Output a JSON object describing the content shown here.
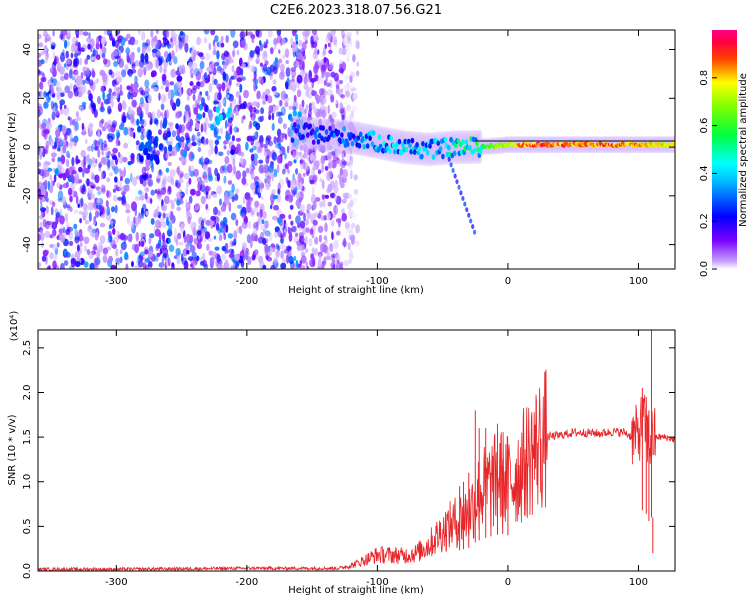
{
  "page_title": "C2E6.2023.318.07.56.G21",
  "chart_data": [
    {
      "type": "heatmap",
      "title": "C2E6.2023.318.07.56.G21",
      "xlabel": "Height of straight line (km)",
      "ylabel": "Frequency (Hz)",
      "xlim": [
        -360,
        128
      ],
      "ylim": [
        -50,
        48
      ],
      "x_ticks": [
        -300,
        -200,
        -100,
        0,
        100
      ],
      "y_ticks": [
        -40,
        -20,
        0,
        20,
        40
      ],
      "colorbar": {
        "label": "Normalized spectral amplitude",
        "range": [
          0,
          1
        ],
        "ticks": [
          "0.0",
          "0.2",
          "0.4",
          "0.6",
          "0.8"
        ],
        "colors": [
          "#ffffff",
          "#7a00ff",
          "#0000ff",
          "#00ffff",
          "#00ff00",
          "#ffff00",
          "#ff0000",
          "#ff0080"
        ]
      },
      "ridge": {
        "description": "Doppler signal ridge (frequency vs height)",
        "x": [
          -165,
          -140,
          -120,
          -100,
          -80,
          -60,
          -40,
          -25,
          -10,
          0,
          20,
          50,
          80,
          100,
          110,
          128
        ],
        "y": [
          6,
          5,
          4,
          2,
          0,
          -1,
          0,
          0,
          0.5,
          1,
          1,
          1,
          1,
          1,
          1,
          1
        ],
        "amplitude": [
          0.3,
          0.3,
          0.35,
          0.4,
          0.45,
          0.45,
          0.5,
          0.6,
          0.7,
          0.8,
          0.9,
          0.9,
          0.9,
          0.85,
          0.8,
          0.8
        ]
      },
      "noise_region_x": [
        -360,
        -125
      ]
    },
    {
      "type": "line",
      "xlabel": "Height of straight line (km)",
      "ylabel": "SNR (10 * v/v)",
      "scale_label": "(x10⁴)",
      "xlim": [
        -360,
        128
      ],
      "ylim": [
        0,
        2.7
      ],
      "x_ticks": [
        -300,
        -200,
        -100,
        0,
        100
      ],
      "y_ticks": [
        "0.0",
        "0.5",
        "1.0",
        "1.5",
        "2.0",
        "2.5"
      ],
      "line_color": "#e8262a",
      "series": [
        {
          "x": [
            -360,
            -300,
            -200,
            -130,
            -120,
            -110,
            -100,
            -90,
            -80,
            -70,
            -60,
            -50,
            -40,
            -30,
            -25,
            -20,
            -15,
            -10,
            -5,
            0,
            5,
            10,
            20,
            30,
            40,
            50,
            60,
            70,
            80,
            90,
            95,
            100,
            103,
            106,
            108,
            110,
            112,
            115,
            120,
            128
          ],
          "y": [
            0.02,
            0.02,
            0.03,
            0.03,
            0.06,
            0.12,
            0.18,
            0.18,
            0.17,
            0.2,
            0.3,
            0.45,
            0.55,
            0.65,
            0.8,
            0.9,
            0.95,
            1.0,
            1.05,
            1.0,
            1.05,
            1.15,
            1.35,
            1.5,
            1.52,
            1.55,
            1.55,
            1.54,
            1.56,
            1.55,
            1.5,
            1.52,
            1.7,
            1.6,
            1.4,
            1.5,
            1.5,
            1.5,
            1.5,
            1.47
          ]
        }
      ],
      "spikes": {
        "x": [
          -37,
          -34,
          -30,
          -25,
          -22,
          -17,
          -13,
          -8,
          -4,
          0,
          103,
          106,
          108,
          110,
          111
        ],
        "y": [
          0.95,
          1.0,
          1.1,
          1.8,
          1.6,
          1.6,
          1.1,
          1.65,
          1.25,
          1.3,
          2.05,
          1.95,
          1.8,
          2.7,
          0.2
        ]
      }
    }
  ]
}
